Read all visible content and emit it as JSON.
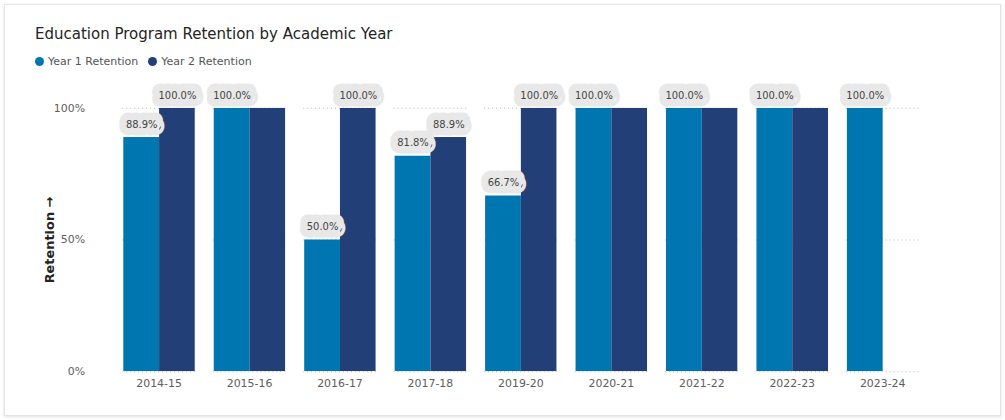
{
  "chart_data": {
    "type": "bar",
    "title": "Education Program Retention by Academic Year",
    "y_label": "Retention",
    "categories": [
      "2014-15",
      "2015-16",
      "2016-17",
      "2017-18",
      "2019-20",
      "2020-21",
      "2021-22",
      "2022-23",
      "2023-24"
    ],
    "series": [
      {
        "name": "Year 1 Retention",
        "color": "#0076B0",
        "values": [
          88.9,
          100,
          50,
          81.8,
          66.7,
          100,
          100,
          100,
          100
        ],
        "value_labels": [
          "88.9%",
          "100.0%",
          "50.0%",
          "81.8%",
          "66.7%",
          "100.0%",
          "100.0%",
          "100.0%",
          "100.0%"
        ]
      },
      {
        "name": "Year 2 Retention",
        "color": "#223F78",
        "values": [
          100,
          100,
          100,
          88.9,
          100,
          100,
          100,
          100,
          null
        ],
        "value_labels": [
          "100.0%",
          null,
          "100.0%",
          "88.9%",
          "100.0%",
          null,
          null,
          null,
          null
        ]
      }
    ],
    "ylim": [
      0,
      100
    ],
    "yticks": [
      {
        "value": 0,
        "label": "0%"
      },
      {
        "value": 50,
        "label": "50%"
      },
      {
        "value": 100,
        "label": "100%"
      }
    ],
    "grid": true,
    "legend": "top-left",
    "data_labels": true
  }
}
